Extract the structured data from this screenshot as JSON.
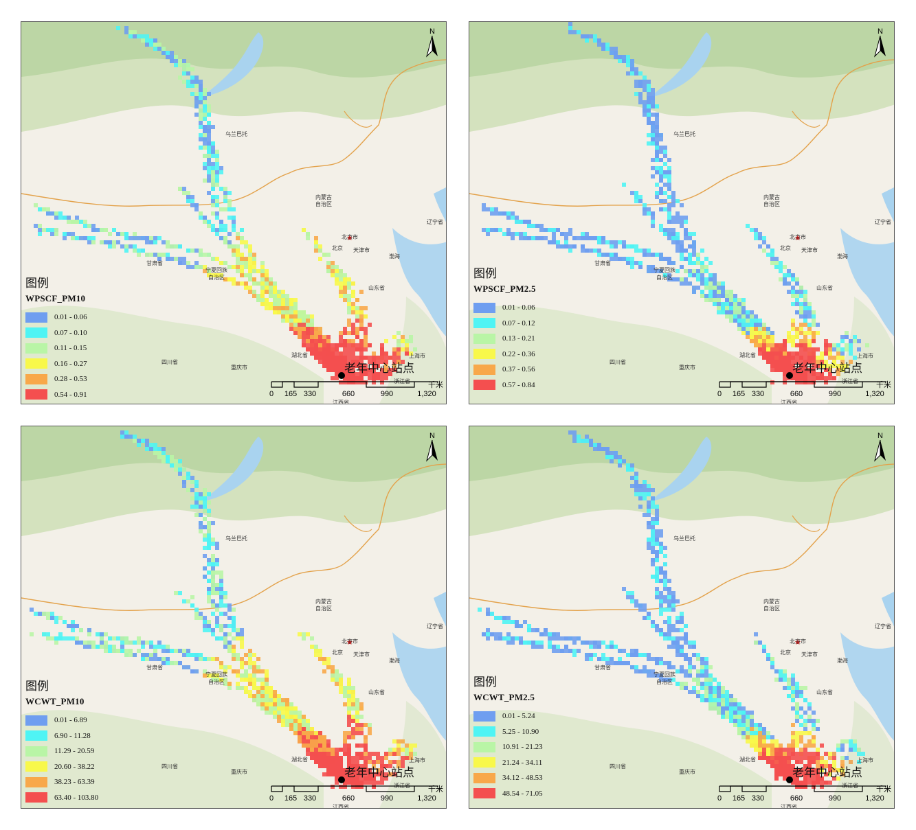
{
  "legend_title": "图例",
  "station_label": "老年中心站点",
  "north_label": "N",
  "scale": {
    "ticks": [
      "0",
      "165",
      "330",
      "660",
      "990",
      "1,320"
    ],
    "unit": "千米"
  },
  "place_names": {
    "wulanbatuo": "乌兰巴托",
    "neimenggu": "内蒙古",
    "zizhiqu": "自治区",
    "beijingshi": "北京市",
    "beijing": "北京",
    "tianjinshi": "天津市",
    "liaoning": "辽宁省",
    "bohai": "渤海",
    "gansu": "甘肃省",
    "ningxia": "宁夏回族",
    "ningxia2": "自治区",
    "shandong": "山东省",
    "sichuan": "四川省",
    "chongqing": "重庆市",
    "shanghai": "上海市",
    "zhejiang": "浙江省",
    "hubei": "湖北省",
    "jiangxi": "江西省"
  },
  "panels": [
    {
      "id": "wpscf-pm10",
      "field": "WPSCF_PM10",
      "classes": [
        {
          "label": "0.01 - 0.06",
          "color": "#6f9ef0"
        },
        {
          "label": "0.07 - 0.10",
          "color": "#4ff4f4"
        },
        {
          "label": "0.11 - 0.15",
          "color": "#b9f5a6"
        },
        {
          "label": "0.16 - 0.27",
          "color": "#f8f84a"
        },
        {
          "label": "0.28 - 0.53",
          "color": "#f8a84a"
        },
        {
          "label": "0.54 - 0.91",
          "color": "#f44f4f"
        }
      ]
    },
    {
      "id": "wpscf-pm25",
      "field": "WPSCF_PM2.5",
      "classes": [
        {
          "label": "0.01 - 0.06",
          "color": "#6f9ef0"
        },
        {
          "label": "0.07 - 0.12",
          "color": "#4ff4f4"
        },
        {
          "label": "0.13 - 0.21",
          "color": "#b9f5a6"
        },
        {
          "label": "0.22 - 0.36",
          "color": "#f8f84a"
        },
        {
          "label": "0.37 - 0.56",
          "color": "#f8a84a"
        },
        {
          "label": "0.57 - 0.84",
          "color": "#f44f4f"
        }
      ]
    },
    {
      "id": "wcwt-pm10",
      "field": "WCWT_PM10",
      "classes": [
        {
          "label": "0.01 - 6.89",
          "color": "#6f9ef0"
        },
        {
          "label": "6.90 - 11.28",
          "color": "#4ff4f4"
        },
        {
          "label": "11.29 - 20.59",
          "color": "#b9f5a6"
        },
        {
          "label": "20.60 - 38.22",
          "color": "#f8f84a"
        },
        {
          "label": "38.23 - 63.39",
          "color": "#f8a84a"
        },
        {
          "label": "63.40 - 103.80",
          "color": "#f44f4f"
        }
      ]
    },
    {
      "id": "wcwt-pm25",
      "field": "WCWT_PM2.5",
      "classes": [
        {
          "label": "0.01 - 5.24",
          "color": "#6f9ef0"
        },
        {
          "label": "5.25 - 10.90",
          "color": "#4ff4f4"
        },
        {
          "label": "10.91 - 21.23",
          "color": "#b9f5a6"
        },
        {
          "label": "21.24 - 34.11",
          "color": "#f8f84a"
        },
        {
          "label": "34.12 - 48.53",
          "color": "#f8a84a"
        },
        {
          "label": "48.54 - 71.05",
          "color": "#f44f4f"
        }
      ]
    }
  ]
}
